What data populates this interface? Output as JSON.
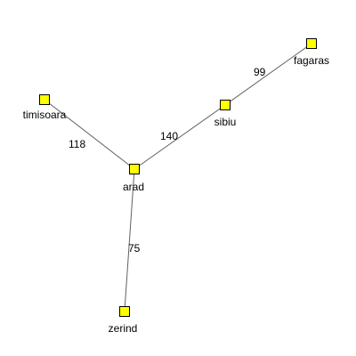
{
  "graph": {
    "node_fill": "#ffff00",
    "node_stroke": "#000000",
    "edge_color": "#606060",
    "nodes": [
      {
        "id": "arad",
        "label": "arad"
      },
      {
        "id": "zerind",
        "label": "zerind"
      },
      {
        "id": "timisoara",
        "label": "timisoara"
      },
      {
        "id": "sibiu",
        "label": "sibiu"
      },
      {
        "id": "fagaras",
        "label": "fagaras"
      }
    ],
    "edges": [
      {
        "from": "arad",
        "to": "timisoara",
        "label": "118"
      },
      {
        "from": "arad",
        "to": "sibiu",
        "label": "140"
      },
      {
        "from": "arad",
        "to": "zerind",
        "label": "75"
      },
      {
        "from": "sibiu",
        "to": "fagaras",
        "label": "99"
      }
    ]
  }
}
